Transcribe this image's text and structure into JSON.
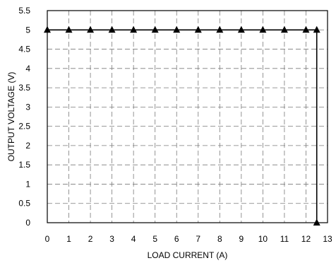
{
  "chart_data": {
    "type": "line",
    "title": "",
    "xlabel": "LOAD CURRENT (A)",
    "ylabel": "OUTPUT VOLTAGE (V)",
    "xlim": [
      0,
      13
    ],
    "ylim": [
      0,
      5.5
    ],
    "x_ticks": [
      0,
      1,
      2,
      3,
      4,
      5,
      6,
      7,
      8,
      9,
      10,
      11,
      12,
      13
    ],
    "y_ticks": [
      0,
      0.5,
      1,
      1.5,
      2,
      2.5,
      3,
      3.5,
      4,
      4.5,
      5,
      5.5
    ],
    "grid": true,
    "grid_style": "dashed",
    "series": [
      {
        "marker": "triangle",
        "color": "#000000",
        "x": [
          0,
          1,
          2,
          3,
          4,
          5,
          6,
          7,
          8,
          9,
          10,
          11,
          12,
          12.5,
          12.5
        ],
        "y": [
          5,
          5,
          5,
          5,
          5,
          5,
          5,
          5,
          5,
          5,
          5,
          5,
          5,
          5,
          0
        ]
      }
    ]
  }
}
